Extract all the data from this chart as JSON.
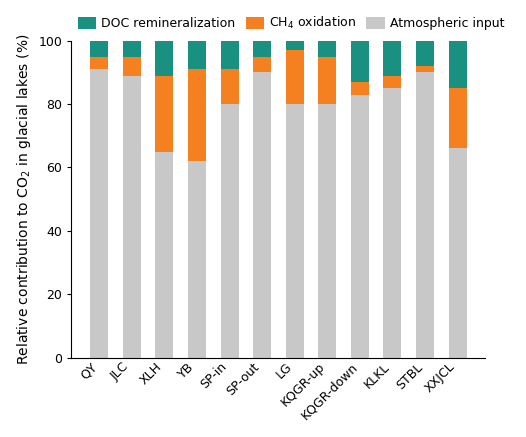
{
  "categories": [
    "QY",
    "JLC",
    "XLH",
    "YB",
    "SP-in",
    "SP-out",
    "LG",
    "KQGR-up",
    "KQGR-down",
    "KLKL",
    "STBL",
    "XXJCL"
  ],
  "atmospheric_input": [
    91,
    89,
    65,
    62,
    80,
    90,
    80,
    80,
    83,
    85,
    90,
    66
  ],
  "ch4_oxidation": [
    4,
    6,
    24,
    29,
    11,
    5,
    17,
    15,
    4,
    4,
    2,
    19
  ],
  "doc_remineralization": [
    5,
    5,
    11,
    9,
    9,
    5,
    3,
    5,
    13,
    11,
    8,
    15
  ],
  "color_atmospheric": "#c8c8c8",
  "color_ch4": "#f58020",
  "color_doc": "#1a9080",
  "ylabel": "Relative contribution to CO$_2$ in glacial lakes (%)",
  "ylim": [
    0,
    100
  ],
  "yticks": [
    0,
    20,
    40,
    60,
    80,
    100
  ],
  "legend_labels": [
    "DOC remineralization",
    "CH$_4$ oxidation",
    "Atmospheric input"
  ],
  "legend_colors": [
    "#1a9080",
    "#f58020",
    "#c8c8c8"
  ],
  "tick_fontsize": 9,
  "label_fontsize": 10,
  "legend_fontsize": 9,
  "bar_width": 0.55
}
